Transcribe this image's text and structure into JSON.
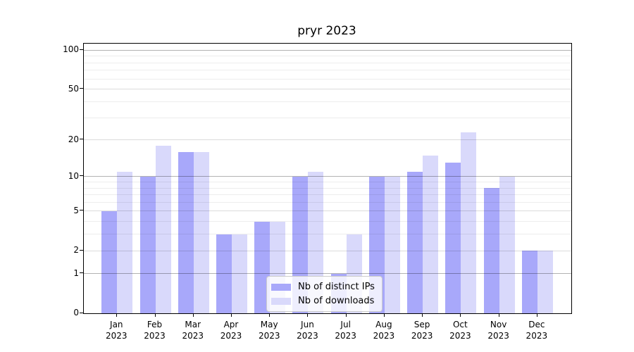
{
  "title": "pryr 2023",
  "chart_data": {
    "type": "bar",
    "title": "pryr 2023",
    "categories": [
      "Jan 2023",
      "Feb 2023",
      "Mar 2023",
      "Apr 2023",
      "May 2023",
      "Jun 2023",
      "Jul 2023",
      "Aug 2023",
      "Sep 2023",
      "Oct 2023",
      "Nov 2023",
      "Dec 2023"
    ],
    "series": [
      {
        "name": "Nb of distinct IPs",
        "color": "#a8a8fa",
        "values": [
          5,
          10,
          16,
          3,
          4,
          10,
          1,
          10,
          11,
          13,
          8,
          2
        ]
      },
      {
        "name": "Nb of downloads",
        "color": "#d9d9fb",
        "values": [
          11,
          18,
          16,
          3,
          4,
          11,
          3,
          10,
          15,
          23,
          10,
          2
        ]
      }
    ],
    "xlabel": "",
    "ylabel": "",
    "y_scale": "log1p",
    "ylim": [
      0,
      113
    ],
    "y_tick_labels": [
      "100",
      "50",
      "20",
      "10",
      "5",
      "2",
      "1",
      "0"
    ],
    "y_tick_values": [
      100,
      50,
      20,
      10,
      5,
      2,
      1,
      0
    ],
    "gridlines": {
      "major": [
        1,
        10,
        100
      ],
      "mid": [
        2,
        5,
        20,
        50
      ],
      "minor": [
        3,
        4,
        6,
        7,
        8,
        9,
        30,
        40,
        60,
        70,
        80,
        90
      ]
    },
    "grid": true,
    "legend_position": "lower center"
  },
  "colors": {
    "background": "#ffffff",
    "axis": "#000000",
    "legend_border": "#cccccc"
  }
}
